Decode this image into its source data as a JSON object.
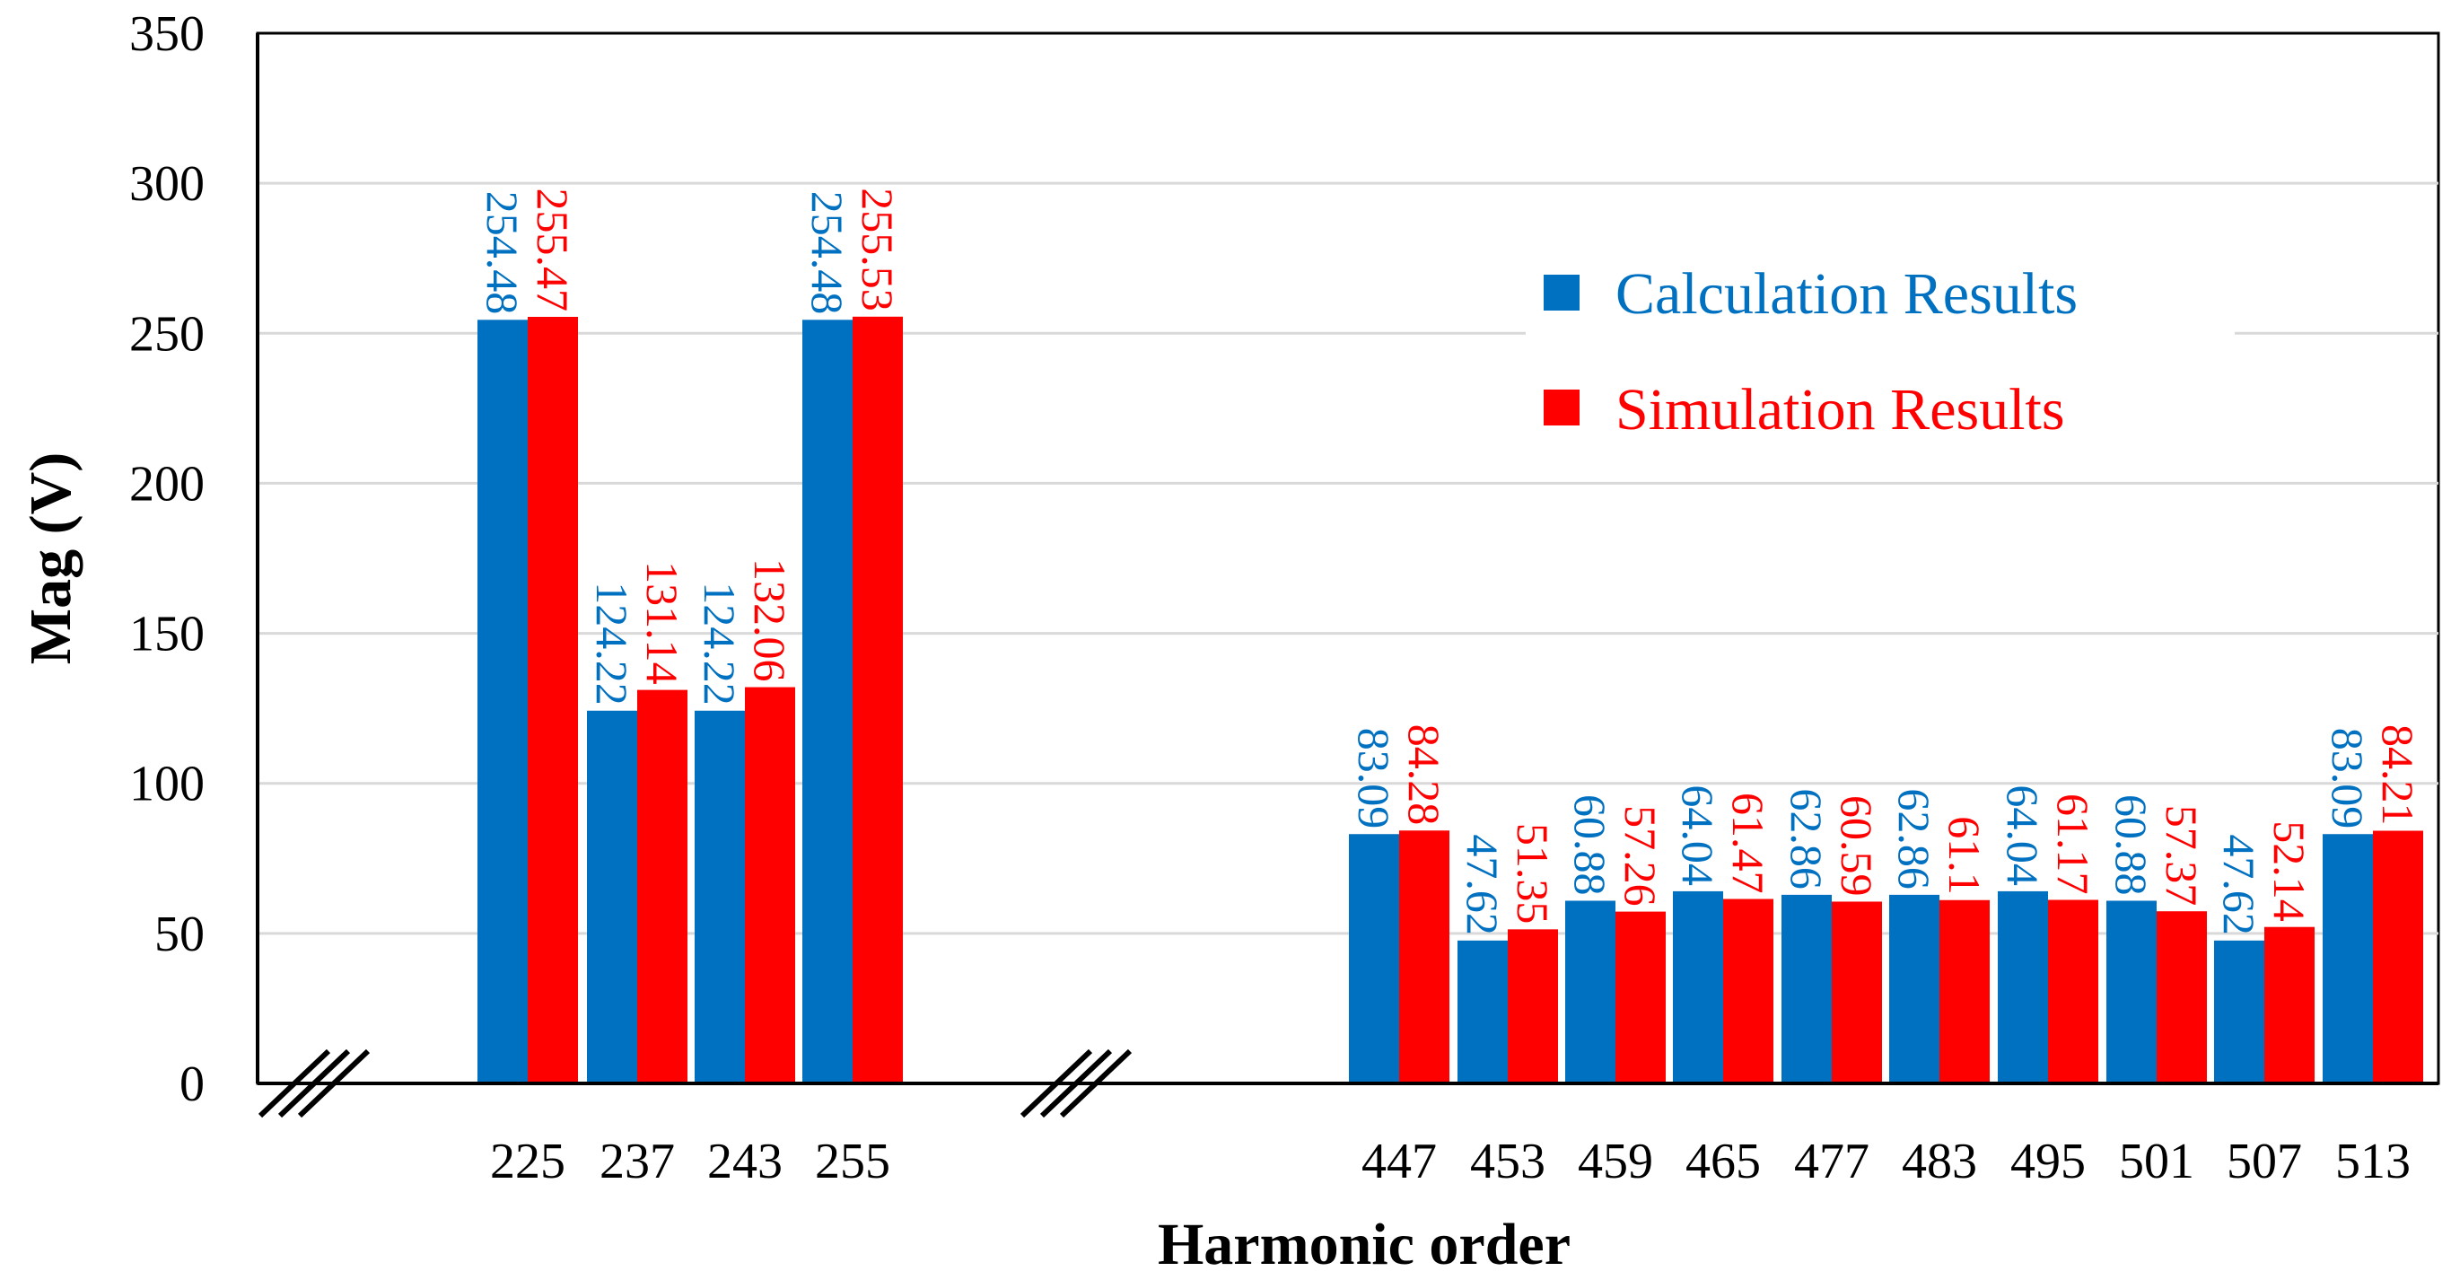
{
  "chart_data": {
    "type": "bar",
    "title": "",
    "xlabel": "Harmonic order",
    "ylabel": "Mag (V)",
    "ylim": [
      0,
      350
    ],
    "yticks": [
      0,
      50,
      100,
      150,
      200,
      250,
      300,
      350
    ],
    "grid": true,
    "legend_position": "top-right",
    "groups": [
      {
        "categories": [
          "225",
          "237",
          "243",
          "255"
        ]
      },
      {
        "categories": [
          "447",
          "453",
          "459",
          "465",
          "477",
          "483",
          "495",
          "501",
          "507",
          "513"
        ]
      }
    ],
    "categories": [
      "225",
      "237",
      "243",
      "255",
      "447",
      "453",
      "459",
      "465",
      "477",
      "483",
      "495",
      "501",
      "507",
      "513"
    ],
    "series": [
      {
        "name": "Calculation Results",
        "color": "#0070C0",
        "values": [
          254.48,
          124.22,
          124.22,
          254.48,
          83.09,
          47.62,
          60.88,
          64.04,
          62.86,
          62.86,
          64.04,
          60.88,
          47.62,
          83.09
        ]
      },
      {
        "name": "Simulation Results",
        "color": "#FF0000",
        "values": [
          255.47,
          131.14,
          132.06,
          255.53,
          84.28,
          51.35,
          57.26,
          61.47,
          60.59,
          61.1,
          61.17,
          57.37,
          52.14,
          84.21
        ]
      }
    ]
  }
}
